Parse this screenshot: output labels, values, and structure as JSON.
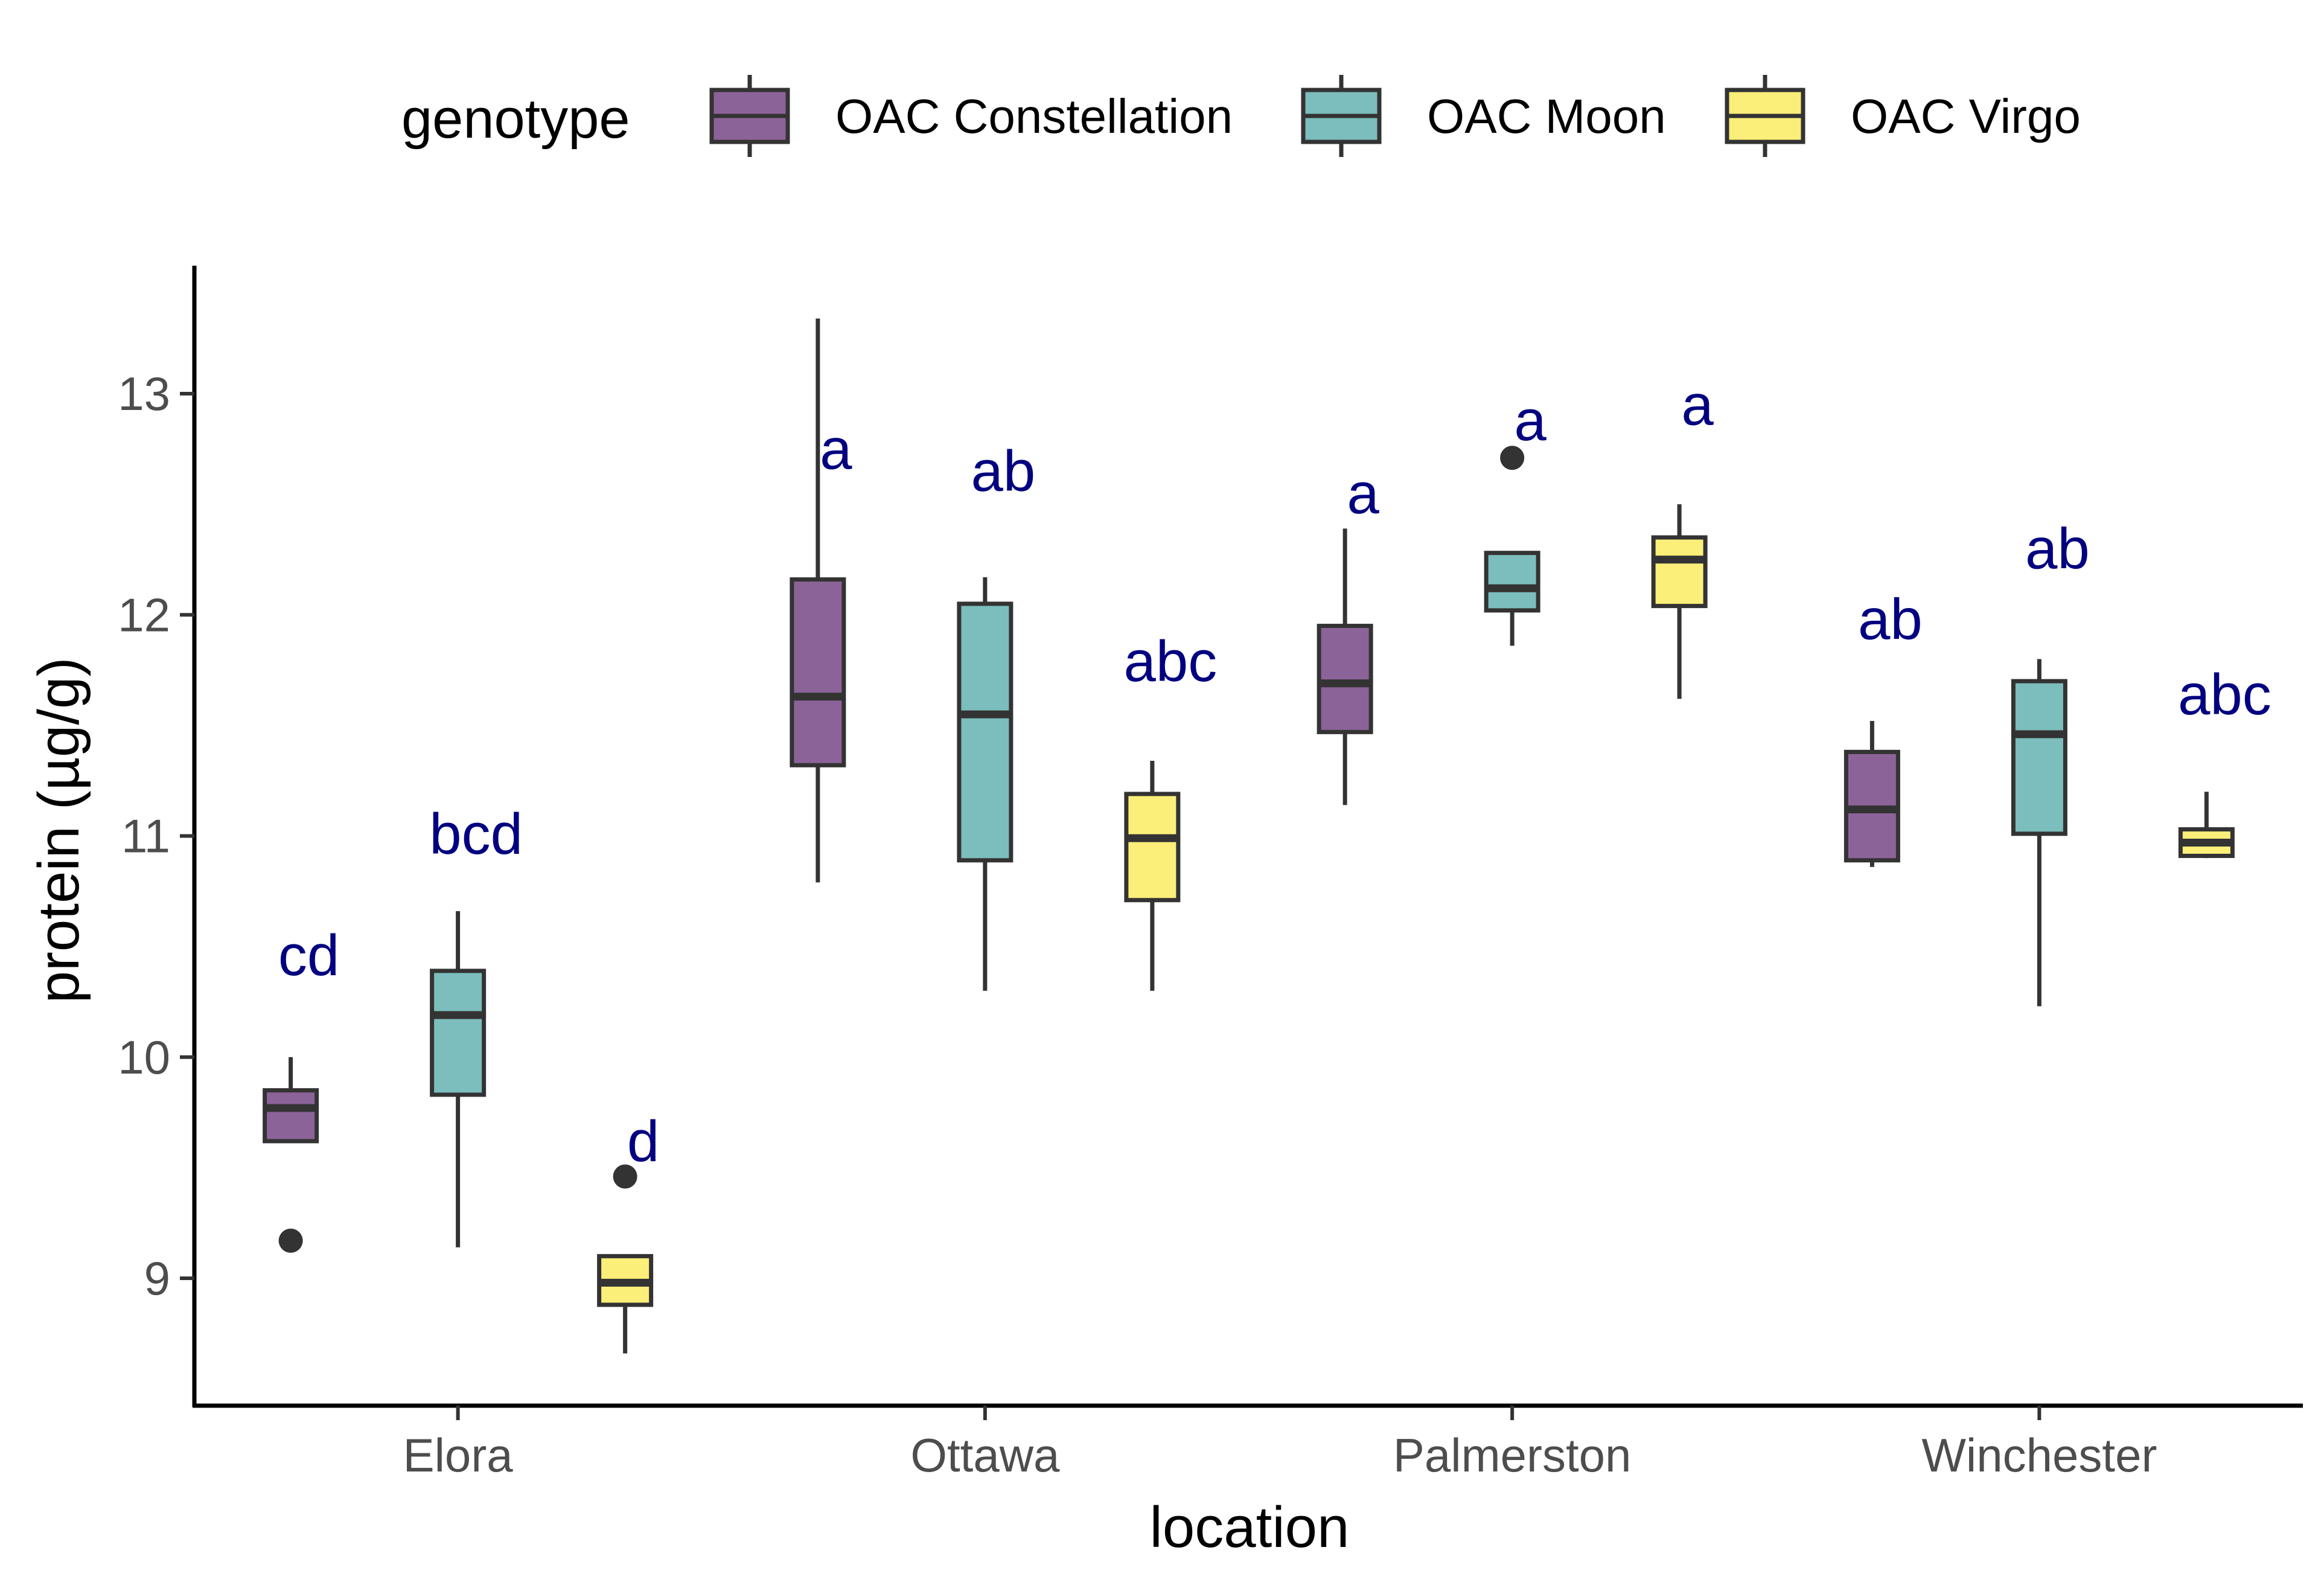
{
  "chart_data": {
    "type": "boxplot",
    "xlabel": "location",
    "ylabel": "protein (µg/g)",
    "categories": [
      "Elora",
      "Ottawa",
      "Palmerston",
      "Winchester"
    ],
    "yticks": [
      9,
      10,
      11,
      12,
      13
    ],
    "ylim": [
      8.43,
      13.58
    ],
    "legend": {
      "title": "genotype",
      "position": "top"
    },
    "grid": false,
    "letter_color": "#000080",
    "series": [
      {
        "name": "OAC Constellation",
        "color": "#8c6399",
        "boxes": [
          {
            "min": 9.62,
            "q1": 9.62,
            "median": 9.77,
            "q3": 9.85,
            "max": 10.0,
            "outliers": [
              9.17
            ],
            "letter": "cd",
            "letter_y": 10.37
          },
          {
            "min": 10.79,
            "q1": 11.32,
            "median": 11.63,
            "q3": 12.16,
            "max": 13.34,
            "outliers": [],
            "letter": "a",
            "letter_y": 12.66
          },
          {
            "min": 11.14,
            "q1": 11.47,
            "median": 11.69,
            "q3": 11.95,
            "max": 12.39,
            "outliers": [],
            "letter": "a",
            "letter_y": 12.46
          },
          {
            "min": 10.86,
            "q1": 10.89,
            "median": 11.12,
            "q3": 11.38,
            "max": 11.52,
            "outliers": [],
            "letter": "ab",
            "letter_y": 11.89
          }
        ]
      },
      {
        "name": "OAC Moon",
        "color": "#7cbdbd",
        "boxes": [
          {
            "min": 9.14,
            "q1": 9.83,
            "median": 10.19,
            "q3": 10.39,
            "max": 10.66,
            "outliers": [],
            "letter": "bcd",
            "letter_y": 10.92
          },
          {
            "min": 10.3,
            "q1": 10.89,
            "median": 11.55,
            "q3": 12.05,
            "max": 12.17,
            "outliers": [],
            "letter": "ab",
            "letter_y": 12.56
          },
          {
            "min": 11.86,
            "q1": 12.02,
            "median": 12.12,
            "q3": 12.28,
            "max": 12.28,
            "outliers": [
              12.71
            ],
            "letter": "a",
            "letter_y": 12.79
          },
          {
            "min": 10.23,
            "q1": 11.01,
            "median": 11.46,
            "q3": 11.7,
            "max": 11.8,
            "outliers": [],
            "letter": "ab",
            "letter_y": 12.21
          }
        ]
      },
      {
        "name": "OAC Virgo",
        "color": "#fbee79",
        "boxes": [
          {
            "min": 8.66,
            "q1": 8.88,
            "median": 8.98,
            "q3": 9.1,
            "max": 9.1,
            "outliers": [
              9.46
            ],
            "letter": "d",
            "letter_y": 9.53
          },
          {
            "min": 10.3,
            "q1": 10.71,
            "median": 10.99,
            "q3": 11.19,
            "max": 11.34,
            "outliers": [],
            "letter": "abc",
            "letter_y": 11.7
          },
          {
            "min": 11.62,
            "q1": 12.04,
            "median": 12.25,
            "q3": 12.35,
            "max": 12.5,
            "outliers": [],
            "letter": "a",
            "letter_y": 12.86
          },
          {
            "min": 10.9,
            "q1": 10.91,
            "median": 10.97,
            "q3": 11.03,
            "max": 11.2,
            "outliers": [],
            "letter": "abc",
            "letter_y": 11.55
          }
        ]
      }
    ]
  }
}
